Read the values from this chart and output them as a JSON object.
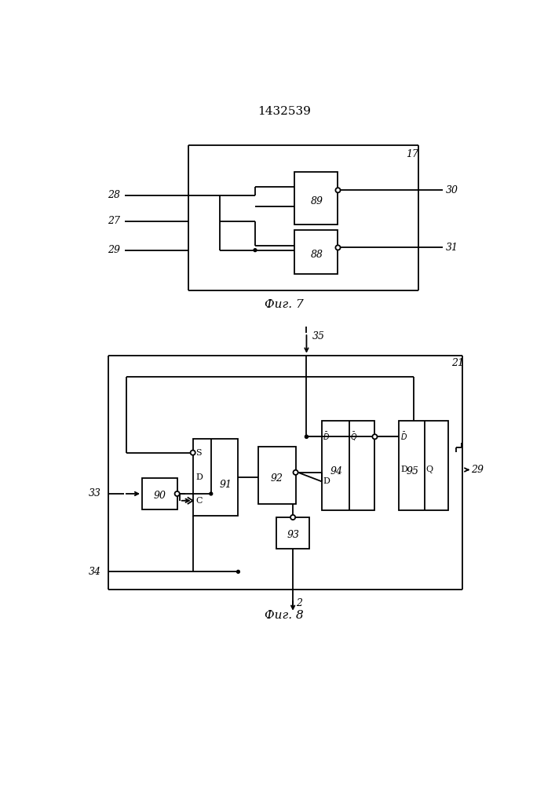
{
  "title": "1432539",
  "fig7_label": "Фиг. 7",
  "fig8_label": "Фиг. 8",
  "bg_color": "#ffffff",
  "lc": "#000000",
  "lw": 1.3
}
